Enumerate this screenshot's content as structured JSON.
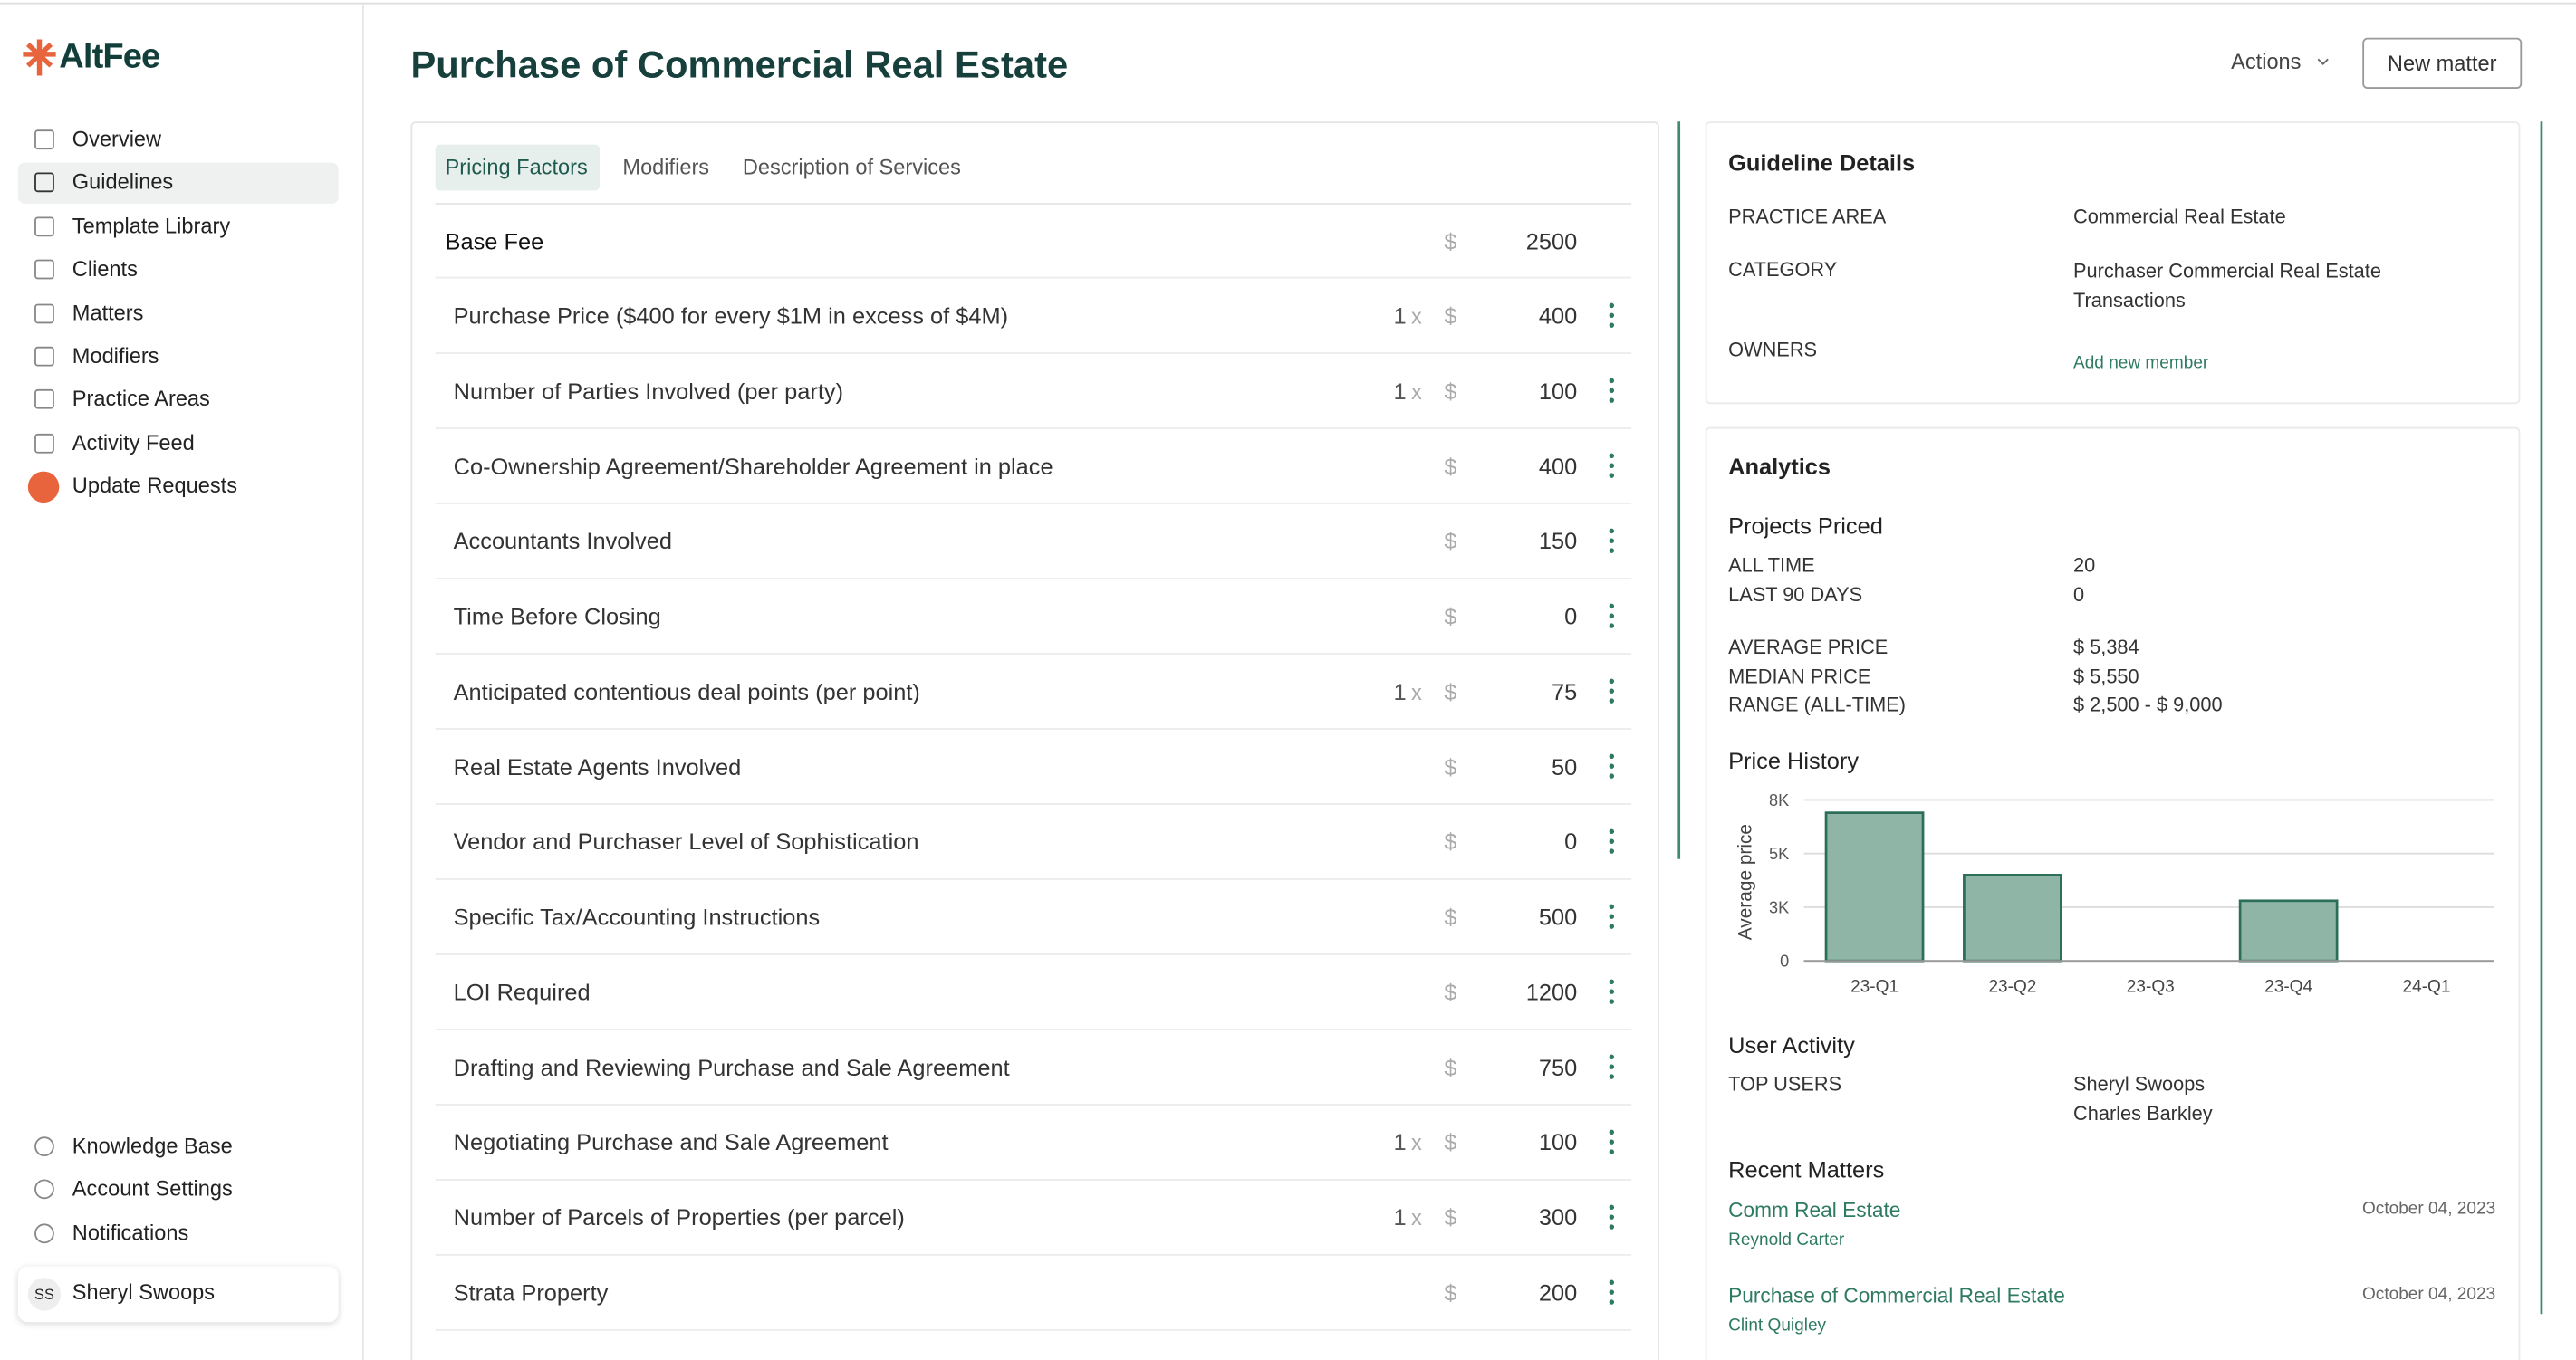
{
  "sidebar": {
    "logo": "AltFee",
    "nav": [
      "Overview",
      "Guidelines",
      "Template Library",
      "Clients",
      "Matters",
      "Modifiers",
      "Practice Areas",
      "Activity Feed",
      "Update Requests"
    ],
    "bottom_nav": [
      "Knowledge Base",
      "Account Settings",
      "Notifications"
    ],
    "user": {
      "initials": "SS",
      "name": "Sheryl Swoops"
    }
  },
  "header": {
    "title": "Purchase of Commercial Real Estate",
    "actions": "Actions",
    "new_matter": "New matter"
  },
  "tabs": [
    "Pricing Factors",
    "Modifiers",
    "Description of Services"
  ],
  "pricing": {
    "currency": "$",
    "multiplier_sign": "x",
    "base_fee": {
      "label": "Base Fee",
      "amount": 2500
    },
    "rows": [
      {
        "label": "Purchase Price ($400 for every $1M in excess of $4M)",
        "multiplier": 1,
        "amount": 400
      },
      {
        "label": "Number of Parties Involved (per party)",
        "multiplier": 1,
        "amount": 100
      },
      {
        "label": "Co-Ownership Agreement/Shareholder Agreement in place",
        "amount": 400
      },
      {
        "label": "Accountants Involved",
        "amount": 150
      },
      {
        "label": "Time Before Closing",
        "amount": 0
      },
      {
        "label": "Anticipated contentious deal points (per point)",
        "multiplier": 1,
        "amount": 75
      },
      {
        "label": "Real Estate Agents Involved",
        "amount": 50
      },
      {
        "label": "Vendor and Purchaser Level of Sophistication",
        "amount": 0
      },
      {
        "label": "Specific Tax/Accounting Instructions",
        "amount": 500
      },
      {
        "label": "LOI Required",
        "amount": 1200
      },
      {
        "label": "Drafting and Reviewing Purchase and Sale Agreement",
        "amount": 750
      },
      {
        "label": "Negotiating Purchase and Sale Agreement",
        "multiplier": 1,
        "amount": 100
      },
      {
        "label": "Number of Parcels of Properties (per parcel)",
        "multiplier": 1,
        "amount": 300
      },
      {
        "label": "Strata Property",
        "amount": 200
      }
    ]
  },
  "guideline_details": {
    "title": "Guideline Details",
    "fields": [
      {
        "label": "PRACTICE AREA",
        "value": "Commercial Real Estate"
      },
      {
        "label": "CATEGORY",
        "value": "Purchaser Commercial Real Estate Transactions"
      }
    ],
    "owners_label": "OWNERS",
    "add_member": "Add new member"
  },
  "analytics": {
    "title": "Analytics",
    "projects_title": "Projects Priced",
    "counts": [
      {
        "label": "ALL TIME",
        "value": 20
      },
      {
        "label": "LAST 90 DAYS",
        "value": 0
      }
    ],
    "prices": [
      {
        "label": "AVERAGE PRICE",
        "value": "$ 5,384"
      },
      {
        "label": "MEDIAN PRICE",
        "value": "$ 5,550"
      },
      {
        "label": "RANGE (ALL-TIME)",
        "value": "$ 2,500 - $ 9,000"
      }
    ],
    "user_activity_title": "User Activity",
    "top_users_label": "TOP USERS",
    "top_users": [
      "Sheryl Swoops",
      "Charles Barkley"
    ],
    "recent_title": "Recent Matters",
    "recent": [
      {
        "name": "Comm Real Estate",
        "client": "Reynold Carter",
        "date": "October 04, 2023"
      },
      {
        "name": "Purchase of Commercial Real Estate",
        "client": "Clint Quigley",
        "date": "October 04, 2023"
      }
    ]
  },
  "chart_data": {
    "type": "bar",
    "title": "Price History",
    "y_label": "Average price",
    "categories": [
      "23-Q1",
      "23-Q2",
      "23-Q3",
      "23-Q4",
      "24-Q1"
    ],
    "values": [
      6900,
      4000,
      0,
      2800,
      0
    ],
    "color": "#8fb5a7",
    "ylim": [
      0,
      7500
    ],
    "yticks": [
      0,
      {
        "value": 2500,
        "label": "3K"
      },
      {
        "value": 5000,
        "label": "5K"
      },
      {
        "value": 7500,
        "label": "8K"
      }
    ],
    "grid": true
  }
}
